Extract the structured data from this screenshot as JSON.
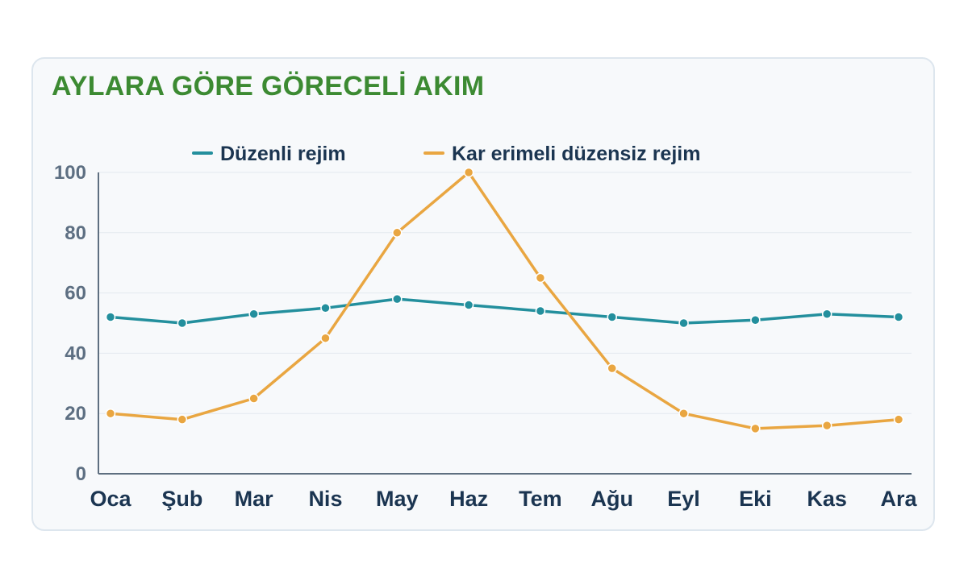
{
  "title": "AYLARA GÖRE GÖRECELİ AKIM",
  "colors": {
    "title": "#3c8a32",
    "card_background": "#f7f9fb",
    "card_border": "#dde6ee",
    "grid": "#e3e9ef",
    "axis": "#5e6f80",
    "text_dark": "#1b3551",
    "text_muted": "#5d6f82"
  },
  "chart_data": {
    "type": "line",
    "title": "AYLARA GÖRE GÖRECELİ AKIM",
    "xlabel": "",
    "ylabel": "",
    "categories": [
      "Oca",
      "Şub",
      "Mar",
      "Nis",
      "May",
      "Haz",
      "Tem",
      "Ağu",
      "Eyl",
      "Eki",
      "Kas",
      "Ara"
    ],
    "ylim": [
      0,
      100
    ],
    "yticks": [
      0,
      20,
      40,
      60,
      80,
      100
    ],
    "grid": true,
    "legend_position": "top-center",
    "series": [
      {
        "name": "Düzenli rejim",
        "color": "#238f9d",
        "values": [
          52,
          50,
          53,
          55,
          58,
          56,
          54,
          52,
          50,
          51,
          53,
          52
        ]
      },
      {
        "name": "Kar erimeli düzensiz rejim",
        "color": "#e9a641",
        "values": [
          20,
          18,
          25,
          45,
          80,
          100,
          65,
          35,
          20,
          15,
          16,
          18
        ]
      }
    ]
  }
}
